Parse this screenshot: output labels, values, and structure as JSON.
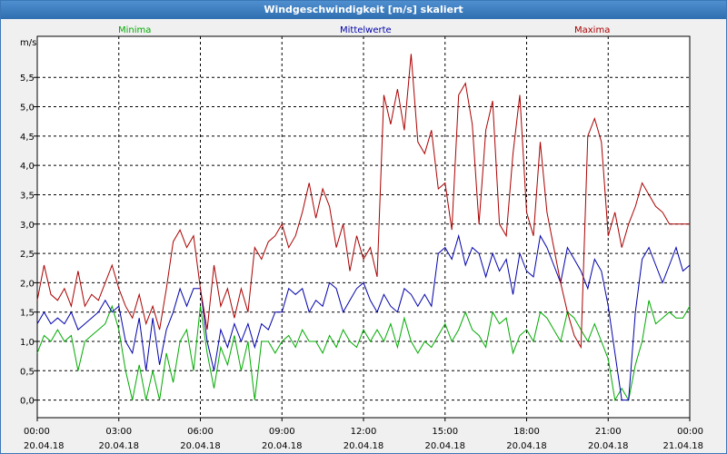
{
  "window": {
    "title": "Windgeschwindigkeit [m/s] skaliert"
  },
  "colors": {
    "minima": "#00aa00",
    "mittel": "#0000aa",
    "maxima": "#aa0000"
  },
  "chart_data": {
    "type": "line",
    "title": "Windgeschwindigkeit [m/s] skaliert",
    "ylabel": "m/s",
    "xlabel": "",
    "ylim": [
      -0.3,
      6.2
    ],
    "xlim": [
      0,
      24
    ],
    "grid": true,
    "y_ticks": [
      "0,0",
      "0,5",
      "1,0",
      "1,5",
      "2,0",
      "2,5",
      "3,0",
      "3,5",
      "4,0",
      "4,5",
      "5,0",
      "5,5"
    ],
    "x_ticks": [
      {
        "time": "00:00",
        "date": "20.04.18"
      },
      {
        "time": "03:00",
        "date": "20.04.18"
      },
      {
        "time": "06:00",
        "date": "20.04.18"
      },
      {
        "time": "09:00",
        "date": "20.04.18"
      },
      {
        "time": "12:00",
        "date": "20.04.18"
      },
      {
        "time": "15:00",
        "date": "20.04.18"
      },
      {
        "time": "18:00",
        "date": "20.04.18"
      },
      {
        "time": "21:00",
        "date": "20.04.18"
      },
      {
        "time": "00:00",
        "date": "21.04.18"
      }
    ],
    "legend": [
      "Minima",
      "Mittelwerte",
      "Maxima"
    ],
    "series": [
      {
        "name": "Minima",
        "x": [
          0,
          0.25,
          0.5,
          0.75,
          1.0,
          1.25,
          1.5,
          1.75,
          2.0,
          2.25,
          2.5,
          2.75,
          3.0,
          3.25,
          3.5,
          3.75,
          4.0,
          4.25,
          4.5,
          4.75,
          5.0,
          5.25,
          5.5,
          5.75,
          6.0,
          6.25,
          6.5,
          6.75,
          7.0,
          7.25,
          7.5,
          7.75,
          8.0,
          8.25,
          8.5,
          8.75,
          9.0,
          9.25,
          9.5,
          9.75,
          10.0,
          10.25,
          10.5,
          10.75,
          11.0,
          11.25,
          11.5,
          11.75,
          12.0,
          12.25,
          12.5,
          12.75,
          13.0,
          13.25,
          13.5,
          13.75,
          14.0,
          14.25,
          14.5,
          14.75,
          15.0,
          15.25,
          15.5,
          15.75,
          16.0,
          16.25,
          16.5,
          16.75,
          17.0,
          17.25,
          17.5,
          17.75,
          18.0,
          18.25,
          18.5,
          18.75,
          19.0,
          19.25,
          19.5,
          19.75,
          20.0,
          20.25,
          20.5,
          20.75,
          21.0,
          21.25,
          21.5,
          21.75,
          22.0,
          22.25,
          22.5,
          22.75,
          23.0,
          23.25,
          23.5,
          23.75,
          24.0
        ],
        "values": [
          0.8,
          1.1,
          1.0,
          1.2,
          1.0,
          1.1,
          0.5,
          1.0,
          1.1,
          1.2,
          1.3,
          1.6,
          1.2,
          0.5,
          0.0,
          0.6,
          0.0,
          0.5,
          0.0,
          0.8,
          0.3,
          1.0,
          1.2,
          0.5,
          1.6,
          0.8,
          0.2,
          0.9,
          0.6,
          1.1,
          0.5,
          1.0,
          0.0,
          1.0,
          1.0,
          0.8,
          1.0,
          1.1,
          0.9,
          1.2,
          1.0,
          1.0,
          0.8,
          1.1,
          0.9,
          1.2,
          1.0,
          0.9,
          1.2,
          1.0,
          1.2,
          1.0,
          1.3,
          0.9,
          1.4,
          1.0,
          0.8,
          1.0,
          0.9,
          1.1,
          1.3,
          1.0,
          1.2,
          1.5,
          1.2,
          1.1,
          0.9,
          1.5,
          1.3,
          1.4,
          0.8,
          1.1,
          1.2,
          1.0,
          1.5,
          1.4,
          1.2,
          1.0,
          1.5,
          1.4,
          1.2,
          1.0,
          1.3,
          1.0,
          0.7,
          0.0,
          0.2,
          0.0,
          0.6,
          1.0,
          1.7,
          1.3,
          1.4,
          1.5,
          1.4,
          1.4,
          1.6
        ]
      },
      {
        "name": "Mittelwerte",
        "x": [
          0,
          0.25,
          0.5,
          0.75,
          1.0,
          1.25,
          1.5,
          1.75,
          2.0,
          2.25,
          2.5,
          2.75,
          3.0,
          3.25,
          3.5,
          3.75,
          4.0,
          4.25,
          4.5,
          4.75,
          5.0,
          5.25,
          5.5,
          5.75,
          6.0,
          6.25,
          6.5,
          6.75,
          7.0,
          7.25,
          7.5,
          7.75,
          8.0,
          8.25,
          8.5,
          8.75,
          9.0,
          9.25,
          9.5,
          9.75,
          10.0,
          10.25,
          10.5,
          10.75,
          11.0,
          11.25,
          11.5,
          11.75,
          12.0,
          12.25,
          12.5,
          12.75,
          13.0,
          13.25,
          13.5,
          13.75,
          14.0,
          14.25,
          14.5,
          14.75,
          15.0,
          15.25,
          15.5,
          15.75,
          16.0,
          16.25,
          16.5,
          16.75,
          17.0,
          17.25,
          17.5,
          17.75,
          18.0,
          18.25,
          18.5,
          18.75,
          19.0,
          19.25,
          19.5,
          19.75,
          20.0,
          20.25,
          20.5,
          20.75,
          21.0,
          21.25,
          21.5,
          21.75,
          22.0,
          22.25,
          22.5,
          22.75,
          23.0,
          23.25,
          23.5,
          23.75,
          24.0
        ],
        "values": [
          1.3,
          1.5,
          1.3,
          1.4,
          1.3,
          1.5,
          1.2,
          1.3,
          1.4,
          1.5,
          1.7,
          1.5,
          1.6,
          1.0,
          0.8,
          1.4,
          0.5,
          1.4,
          0.6,
          1.2,
          1.5,
          1.9,
          1.6,
          1.9,
          1.9,
          1.0,
          0.5,
          1.2,
          0.9,
          1.3,
          1.0,
          1.3,
          0.9,
          1.3,
          1.2,
          1.5,
          1.5,
          1.9,
          1.8,
          1.9,
          1.5,
          1.7,
          1.6,
          2.0,
          1.9,
          1.5,
          1.7,
          1.9,
          2.0,
          1.7,
          1.5,
          1.8,
          1.6,
          1.5,
          1.9,
          1.8,
          1.6,
          1.8,
          1.6,
          2.5,
          2.6,
          2.4,
          2.8,
          2.3,
          2.6,
          2.5,
          2.1,
          2.5,
          2.2,
          2.4,
          1.8,
          2.5,
          2.2,
          2.1,
          2.8,
          2.6,
          2.3,
          2.0,
          2.6,
          2.4,
          2.2,
          1.9,
          2.4,
          2.2,
          1.6,
          0.8,
          0.0,
          0.0,
          1.5,
          2.4,
          2.6,
          2.3,
          2.0,
          2.3,
          2.6,
          2.2,
          2.3
        ]
      },
      {
        "name": "Maxima",
        "x": [
          0,
          0.25,
          0.5,
          0.75,
          1.0,
          1.25,
          1.5,
          1.75,
          2.0,
          2.25,
          2.5,
          2.75,
          3.0,
          3.25,
          3.5,
          3.75,
          4.0,
          4.25,
          4.5,
          4.75,
          5.0,
          5.25,
          5.5,
          5.75,
          6.0,
          6.25,
          6.5,
          6.75,
          7.0,
          7.25,
          7.5,
          7.75,
          8.0,
          8.25,
          8.5,
          8.75,
          9.0,
          9.25,
          9.5,
          9.75,
          10.0,
          10.25,
          10.5,
          10.75,
          11.0,
          11.25,
          11.5,
          11.75,
          12.0,
          12.25,
          12.5,
          12.75,
          13.0,
          13.25,
          13.5,
          13.75,
          14.0,
          14.25,
          14.5,
          14.75,
          15.0,
          15.25,
          15.5,
          15.75,
          16.0,
          16.25,
          16.5,
          16.75,
          17.0,
          17.25,
          17.5,
          17.75,
          18.0,
          18.25,
          18.5,
          18.75,
          19.0,
          19.25,
          19.5,
          19.75,
          20.0,
          20.25,
          20.5,
          20.75,
          21.0,
          21.25,
          21.5,
          21.75,
          22.0,
          22.25,
          22.5,
          22.75,
          23.0,
          23.25,
          23.5,
          23.75,
          24.0
        ],
        "values": [
          1.7,
          2.3,
          1.8,
          1.7,
          1.9,
          1.6,
          2.2,
          1.6,
          1.8,
          1.7,
          2.0,
          2.3,
          1.9,
          1.6,
          1.4,
          1.8,
          1.3,
          1.6,
          1.2,
          1.9,
          2.7,
          2.9,
          2.6,
          2.8,
          1.9,
          1.2,
          2.3,
          1.6,
          1.9,
          1.4,
          1.9,
          1.5,
          2.6,
          2.4,
          2.7,
          2.8,
          3.0,
          2.6,
          2.8,
          3.2,
          3.7,
          3.1,
          3.6,
          3.3,
          2.6,
          3.0,
          2.2,
          2.8,
          2.4,
          2.6,
          2.1,
          5.2,
          4.7,
          5.3,
          4.6,
          5.9,
          4.4,
          4.2,
          4.6,
          3.6,
          3.7,
          2.9,
          5.2,
          5.4,
          4.7,
          3.0,
          4.6,
          5.1,
          3.0,
          2.8,
          4.2,
          5.2,
          3.2,
          2.8,
          4.4,
          3.2,
          2.6,
          2.0,
          1.5,
          1.1,
          0.9,
          4.5,
          4.8,
          4.4,
          2.8,
          3.2,
          2.6,
          3.0,
          3.3,
          3.7,
          3.5,
          3.3,
          3.2,
          3.0,
          3.0,
          3.0,
          3.0
        ]
      }
    ]
  }
}
